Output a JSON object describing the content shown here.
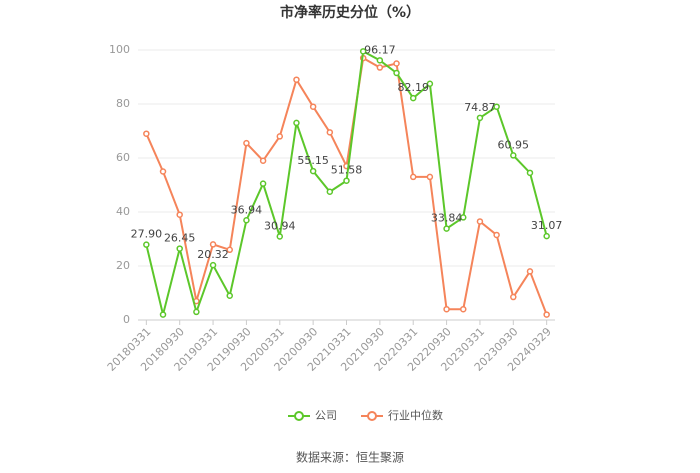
{
  "chart_data": {
    "type": "line",
    "title": "市净率历史分位（%）",
    "categories": [
      "20180331",
      null,
      "20180930",
      null,
      "20190331",
      null,
      "20190930",
      null,
      "20200331",
      null,
      "20200930",
      null,
      "20210331",
      null,
      "20210930",
      null,
      "20220331",
      null,
      "20220930",
      null,
      "20230331",
      null,
      "20230930",
      null,
      "20240329"
    ],
    "series": [
      {
        "name": "公司",
        "color": "#5cc72a",
        "values": [
          27.9,
          2,
          26.45,
          3,
          20.32,
          9,
          36.94,
          50.5,
          30.94,
          73,
          55.15,
          47.5,
          51.58,
          99.5,
          96.17,
          91.5,
          82.19,
          87.5,
          33.84,
          38,
          74.87,
          79,
          60.95,
          54.5,
          31.07
        ],
        "value_labels": [
          "27.90",
          null,
          "26.45",
          null,
          "20.32",
          null,
          "36.94",
          null,
          "30.94",
          null,
          "55.15",
          null,
          "51.58",
          null,
          "96.17",
          null,
          "82.19",
          null,
          "33.84",
          null,
          "74.87",
          null,
          "60.95",
          null,
          "31.07"
        ]
      },
      {
        "name": "行业中位数",
        "color": "#f5845a",
        "values": [
          69,
          55,
          39,
          7,
          28,
          26,
          65.5,
          59,
          68,
          89,
          79,
          69.5,
          57,
          97,
          93.5,
          95,
          53,
          53,
          4,
          4,
          36.5,
          31.5,
          8.5,
          18,
          2
        ]
      }
    ],
    "ylim": [
      0,
      100
    ],
    "yticks": [
      0,
      20,
      40,
      60,
      80,
      100
    ],
    "grid": true,
    "legend": "bottom",
    "source": "数据来源：恒生聚源"
  }
}
